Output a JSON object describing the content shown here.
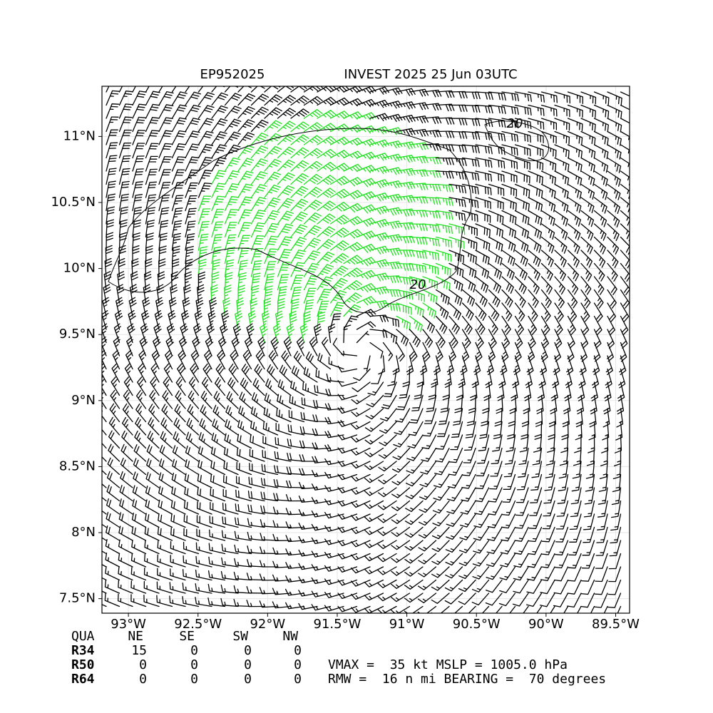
{
  "chart_data": {
    "type": "wind-barb-map",
    "title_left": "EP952025",
    "title_right": "INVEST 2025 25 Jun 03UTC",
    "xlim": [
      -93.19,
      -89.4
    ],
    "ylim": [
      7.39,
      11.38
    ],
    "xticks": [
      {
        "value": -93,
        "label": "93°W"
      },
      {
        "value": -92.5,
        "label": "92.5°W"
      },
      {
        "value": -92,
        "label": "92°W"
      },
      {
        "value": -91.5,
        "label": "91.5°W"
      },
      {
        "value": -91,
        "label": "91°W"
      },
      {
        "value": -90.5,
        "label": "90.5°W"
      },
      {
        "value": -90,
        "label": "90°W"
      },
      {
        "value": -89.5,
        "label": "89.5°W"
      }
    ],
    "yticks": [
      {
        "value": 7.5,
        "label": "7.5°N"
      },
      {
        "value": 8,
        "label": "8°N"
      },
      {
        "value": 8.5,
        "label": "8.5°N"
      },
      {
        "value": 9,
        "label": "9°N"
      },
      {
        "value": 9.5,
        "label": "9.5°N"
      },
      {
        "value": 10,
        "label": "10°N"
      },
      {
        "value": 10.5,
        "label": "10.5°N"
      },
      {
        "value": 11,
        "label": "11°N"
      }
    ],
    "grid": true,
    "contour_labels": [
      "20",
      "20"
    ],
    "barb_color": "#000000",
    "strong_barb_color": "#22e022"
  },
  "table": {
    "header": [
      "QUA",
      "NE",
      "SE",
      "SW",
      "NW"
    ],
    "rows": [
      [
        "R34",
        15,
        0,
        0,
        0
      ],
      [
        "R50",
        0,
        0,
        0,
        0
      ],
      [
        "R64",
        0,
        0,
        0,
        0
      ]
    ]
  },
  "summary": [
    "VMAX =  35 kt MSLP = 1005.0 hPa",
    "RMW =  16 n mi BEARING =  70 degrees"
  ]
}
